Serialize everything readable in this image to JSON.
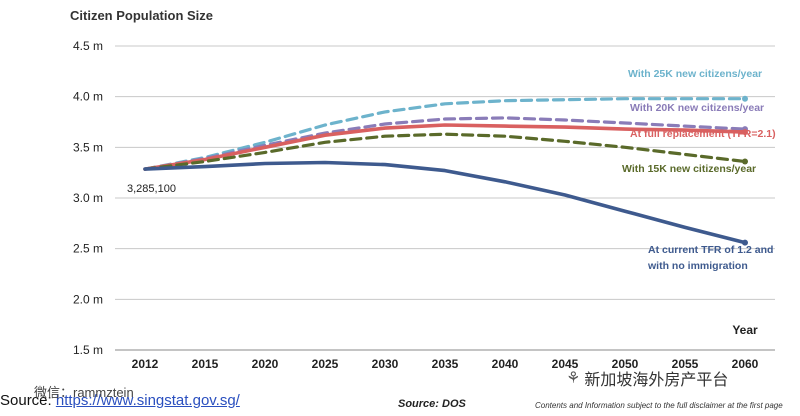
{
  "chart_data": {
    "type": "line",
    "title": "Citizen Population Size",
    "xlabel": "Year",
    "ylabel": "",
    "categories": [
      "2012",
      "2015",
      "2020",
      "2025",
      "2030",
      "2035",
      "2040",
      "2045",
      "2050",
      "2055",
      "2060"
    ],
    "ylim": [
      1.5,
      4.5
    ],
    "yticks": [
      "1.5 m",
      "2.0 m",
      "2.5 m",
      "3.0 m",
      "3.5 m",
      "4.0 m",
      "4.5 m"
    ],
    "grid": true,
    "annotations": [
      {
        "text": "3,285,100",
        "x": "2012",
        "y": 3.2851
      }
    ],
    "series": [
      {
        "name": "With 25K new citizens/year",
        "color": "#6db3cc",
        "style": "dashed",
        "values": [
          3.285,
          3.4,
          3.55,
          3.72,
          3.85,
          3.93,
          3.96,
          3.97,
          3.98,
          3.98,
          3.98
        ]
      },
      {
        "name": "With 20K new citizens/year",
        "color": "#8a7cb8",
        "style": "dashed",
        "values": [
          3.285,
          3.39,
          3.52,
          3.64,
          3.73,
          3.78,
          3.79,
          3.77,
          3.74,
          3.71,
          3.68
        ]
      },
      {
        "name": "At full replacement (TFR=2.1)",
        "color": "#d96060",
        "style": "solid",
        "values": [
          3.285,
          3.38,
          3.5,
          3.62,
          3.69,
          3.72,
          3.71,
          3.7,
          3.68,
          3.67,
          3.65
        ]
      },
      {
        "name": "With 15K new citizens/year",
        "color": "#5a6a2a",
        "style": "dashed",
        "values": [
          3.285,
          3.36,
          3.45,
          3.55,
          3.61,
          3.63,
          3.61,
          3.56,
          3.5,
          3.43,
          3.36
        ]
      },
      {
        "name": "At current TFR of 1.2 and with no immigration",
        "color": "#3e5a8e",
        "style": "solid",
        "values": [
          3.285,
          3.31,
          3.34,
          3.35,
          3.33,
          3.27,
          3.16,
          3.03,
          2.87,
          2.71,
          2.56
        ]
      }
    ]
  },
  "source": {
    "label": "Source:",
    "url": "https://www.singstat.gov.sg/",
    "overlay": "微信：rammztein"
  },
  "source_dos": "Source: DOS",
  "disclaimer": "Contents and Information subject to the full disclaimer at the first page",
  "brand": {
    "text": "新加坡海外房产平台",
    "icon": "wechat-icon"
  }
}
